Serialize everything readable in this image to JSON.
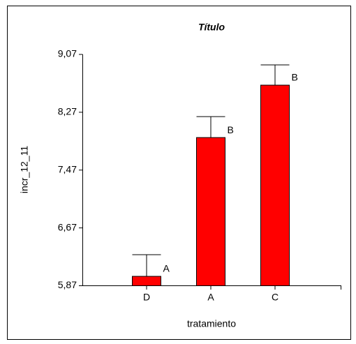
{
  "chart_data": {
    "type": "bar",
    "title": "Título",
    "x_label": "tratamiento",
    "y_label": "incr_12_11",
    "categories": [
      "D",
      "A",
      "C"
    ],
    "values": [
      6.0,
      7.92,
      8.645
    ],
    "errors": [
      0.3,
      0.29,
      0.28
    ],
    "value_annotations": [
      "A",
      "B",
      "B"
    ],
    "color": "#ff0000",
    "ylim": [
      5.87,
      9.07
    ],
    "yticks": [
      {
        "value": 5.87,
        "label": "5,87"
      },
      {
        "value": 6.67,
        "label": "6,67"
      },
      {
        "value": 7.47,
        "label": "7,47"
      },
      {
        "value": 8.27,
        "label": "8,27"
      },
      {
        "value": 9.07,
        "label": "9,07"
      }
    ]
  }
}
